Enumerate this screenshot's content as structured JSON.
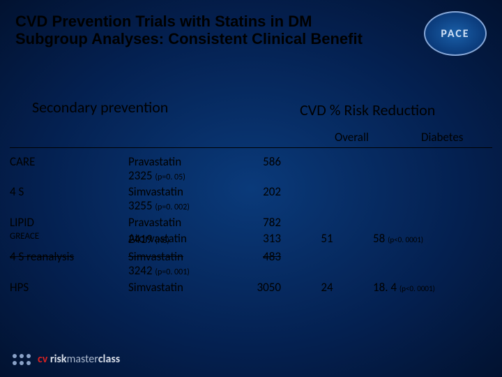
{
  "title": "CVD Prevention Trials with Statins in DM Subgroup Analyses: Consistent Clinical Benefit",
  "logo_text": "PACE",
  "subtitle": "Secondary prevention",
  "columns": {
    "group_heading": "CVD % Risk Reduction",
    "overall": "Overall",
    "diabetes": "Diabetes"
  },
  "rows": [
    {
      "trial": "CARE",
      "drug_line1": "Pravastatin",
      "drug_line2": "2325",
      "p_line2": "(p=0. 05)",
      "n": "586",
      "overall": "",
      "diabetes": "",
      "p_diab": ""
    },
    {
      "trial": "4 S",
      "drug_line1": "Simvastatin",
      "drug_line2": "3255",
      "p_line2": "(p=0. 002)",
      "n": "202",
      "overall": "",
      "diabetes": "",
      "p_diab": ""
    },
    {
      "trial": "LIPID",
      "drug_line1": "Pravastatin",
      "drug_line2": "",
      "p_line2": "",
      "n": "782",
      "overall": "",
      "diabetes": "",
      "p_diab": ""
    },
    {
      "trial": "GREACE",
      "small": true,
      "drug_overlap_a": "Atorvastatin",
      "drug_overlap_b": "2419",
      "drug_overlap_b_sub": "(NS)",
      "n": "313",
      "overall": "51",
      "diabetes": "58",
      "p_diab": "(p<0. 0001)"
    },
    {
      "trial": "4 S reanalysis",
      "strike": true,
      "drug_line1": "Simvastatin",
      "drug_line2": "3242",
      "p_line2": "(p=0. 001)",
      "n": "483",
      "overall": "",
      "diabetes": "",
      "p_diab": ""
    },
    {
      "trial": "HPS",
      "drug_line1": "Simvastatin",
      "drug_line2": "",
      "p_line2": "",
      "n": "3050",
      "overall": "24",
      "diabetes": "18. 4",
      "p_diab": "(p<0. 0001)"
    }
  ],
  "footer": {
    "cv": "cv",
    "risk": " risk",
    "master": "master",
    "klass": "class"
  }
}
